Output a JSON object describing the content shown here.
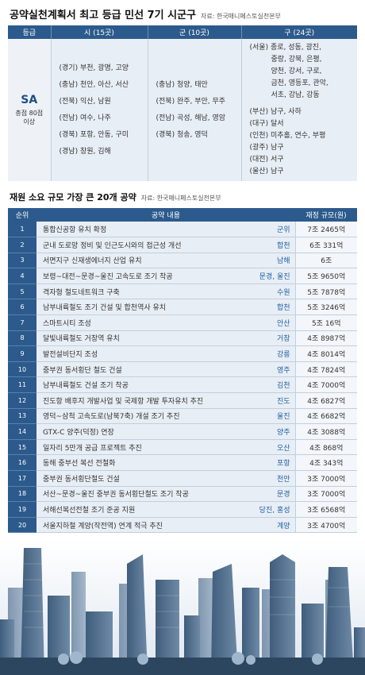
{
  "header": {
    "title": "공약실천계획서 최고 등급 민선 7기 시군구",
    "source": "자료: 한국매니페스토실천본부"
  },
  "grade_table": {
    "headers": [
      "등급",
      "시 (15곳)",
      "군 (10곳)",
      "구 (24곳)"
    ],
    "grade": "SA",
    "score_line1": "총점 80점",
    "score_line2": "이상",
    "si": [
      "(경기) 부천, 광명, 고양",
      "(충남) 천안, 아산, 서산",
      "(전북) 익산, 남원",
      "(전남) 여수, 나주",
      "(경북) 포항, 안동, 구미",
      "(경남) 창원, 김해"
    ],
    "gun": [
      "(충남) 청양, 태안",
      "(전북) 완주, 부안, 무주",
      "(전남) 곡성, 해남, 영암",
      "(경북) 청송, 영덕"
    ],
    "gu_seoul": [
      "(서울) 종로, 성동, 광진,",
      "중랑, 강북, 은평,",
      "양천, 강서, 구로,",
      "금천, 영등포, 관악,",
      "서초, 강남, 강동"
    ],
    "gu_other": [
      "(부산) 남구, 사하",
      "(대구) 달서",
      "(인천) 미추홀, 연수, 부평",
      "(광주) 남구",
      "(대전) 서구",
      "(울산) 남구"
    ]
  },
  "budget_table": {
    "title": "재원 소요 규모 가장 큰 20개 공약",
    "source": "자료: 한국매니페스토실천본부",
    "headers": [
      "순위",
      "공약 내용",
      "재정 규모(원)"
    ],
    "rows": [
      {
        "rank": "1",
        "pledge": "통합신공항 유치 확정",
        "region": "군위",
        "budget": "7조 2465억"
      },
      {
        "rank": "2",
        "pledge": "군내 도로망 정비 및 인근도시와의 접근성 개선",
        "region": "합천",
        "budget": "6조 331억"
      },
      {
        "rank": "3",
        "pledge": "서면지구 신재생에너지 산업 유치",
        "region": "남해",
        "budget": "6조"
      },
      {
        "rank": "4",
        "pledge": "보령~대전~문경~울진 고속도로 조기 착공",
        "region": "문경, 울진",
        "budget": "5조 9650억"
      },
      {
        "rank": "5",
        "pledge": "격자형 철도네트워크 구축",
        "region": "수원",
        "budget": "5조 7878억"
      },
      {
        "rank": "6",
        "pledge": "남부내륙철도 조기 건설 및 합천역사 유치",
        "region": "합천",
        "budget": "5조 3246억"
      },
      {
        "rank": "7",
        "pledge": "스마트시티 조성",
        "region": "안산",
        "budget": "5조 16억"
      },
      {
        "rank": "8",
        "pledge": "달빛내륙철도 거창역 유치",
        "region": "거창",
        "budget": "4조 8987억"
      },
      {
        "rank": "9",
        "pledge": "발전설비단지 조성",
        "region": "강릉",
        "budget": "4조 8014억"
      },
      {
        "rank": "10",
        "pledge": "중부권 동서횡단 철도 건설",
        "region": "영주",
        "budget": "4조 7824억"
      },
      {
        "rank": "11",
        "pledge": "남부내륙철도 건설 조기 착공",
        "region": "김천",
        "budget": "4조 7000억"
      },
      {
        "rank": "12",
        "pledge": "진도항 배후지 개발사업 및 국제항 개발 투자유치 추진",
        "region": "진도",
        "budget": "4조 6827억"
      },
      {
        "rank": "13",
        "pledge": "영덕~삼척 고속도로(남북7축) 개설 조기 추진",
        "region": "울진",
        "budget": "4조 6682억"
      },
      {
        "rank": "14",
        "pledge": "GTX-C 양주(덕정) 연장",
        "region": "양주",
        "budget": "4조 3088억"
      },
      {
        "rank": "15",
        "pledge": "일자리 5만개 공급 프로젝트 추진",
        "region": "오산",
        "budget": "4조 868억"
      },
      {
        "rank": "16",
        "pledge": "동해 중부선 복선 전철화",
        "region": "포항",
        "budget": "4조 343억"
      },
      {
        "rank": "17",
        "pledge": "중부권 동서횡단철도 건설",
        "region": "천안",
        "budget": "3조 7000억"
      },
      {
        "rank": "18",
        "pledge": "서산~문경~울진 중부권 동서횡단철도 조기 착공",
        "region": "문경",
        "budget": "3조 7000억"
      },
      {
        "rank": "19",
        "pledge": "서해선복선전철 조기 준공 지원",
        "region": "당진, 홍성",
        "budget": "3조 6568억"
      },
      {
        "rank": "20",
        "pledge": "서울지하철 계양(작전역) 연계 적극 추진",
        "region": "계양",
        "budget": "3조 4700억"
      }
    ]
  },
  "colors": {
    "header_blue": "#2c5a8c",
    "cell_bg": "#e8eef5",
    "region_blue": "#1d5fa5"
  }
}
